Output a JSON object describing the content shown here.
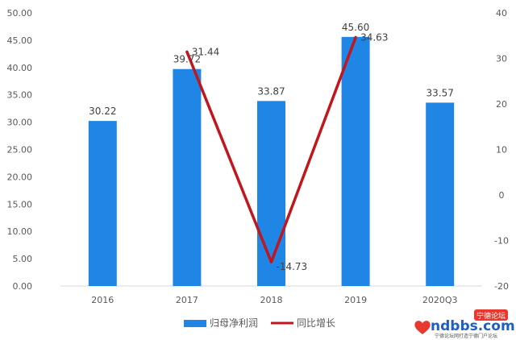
{
  "chart_data": {
    "type": "bar",
    "categories": [
      "2016",
      "2017",
      "2018",
      "2019",
      "2020Q3"
    ],
    "series": [
      {
        "name": "归母净利润",
        "type": "bar",
        "axis": "left",
        "color": "#1f86e6",
        "values": [
          30.22,
          39.72,
          33.87,
          45.6,
          33.57
        ],
        "labels": [
          "30.22",
          "39.72",
          "33.87",
          "45.60",
          "33.57"
        ]
      },
      {
        "name": "同比增长",
        "type": "line",
        "axis": "right",
        "color": "#c0161c",
        "x": [
          "2017",
          "2018",
          "2019"
        ],
        "values": [
          31.44,
          -14.73,
          34.63
        ],
        "labels": [
          "31.44",
          "-14.73",
          "34.63"
        ]
      }
    ],
    "y_left": {
      "ylim": [
        0,
        50
      ],
      "ticks": [
        "0.00",
        "5.00",
        "10.00",
        "15.00",
        "20.00",
        "25.00",
        "30.00",
        "35.00",
        "40.00",
        "45.00",
        "50.00"
      ]
    },
    "y_right": {
      "ylim": [
        -20,
        40
      ],
      "ticks": [
        "-20",
        "-10",
        "0",
        "10",
        "20",
        "30",
        "40"
      ]
    },
    "title": "",
    "xlabel": "",
    "ylabel": "",
    "grid": false,
    "legend": "bottom"
  },
  "watermark": {
    "badge": "宁德论坛",
    "brand": "ndbbs.com",
    "tagline": "宁德论坛网打造宁德门户论坛"
  }
}
